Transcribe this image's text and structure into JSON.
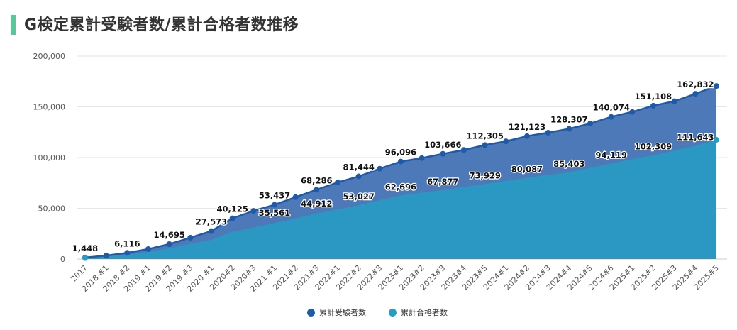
{
  "title": "G検定累計受験者数/累計合格者数推移",
  "chart_data": {
    "type": "area",
    "title": "G検定累計受験者数/累計合格者数推移",
    "xlabel": "",
    "ylabel": "",
    "ylim": [
      0,
      200000
    ],
    "yticks": [
      "0",
      "50,000",
      "100,000",
      "150,000",
      "200,000"
    ],
    "ytick_values": [
      0,
      50000,
      100000,
      150000,
      200000
    ],
    "grid": true,
    "legend_position": "bottom-center",
    "categories": [
      "2017",
      "2018 #1",
      "2018 #2",
      "2019 #1",
      "2019 #2",
      "2019 #3",
      "2020 #1",
      "2020#2",
      "2020#3",
      "2021 #1",
      "2021#2",
      "2021#3",
      "2022#1",
      "2022#2",
      "2022#3",
      "2023#1",
      "2023#2",
      "2023#3",
      "2023#4",
      "2023#5",
      "2024#1",
      "2024#2",
      "2024#3",
      "2024#4",
      "2024#5",
      "2024#6",
      "2025#1",
      "2025#2",
      "2025#3",
      "2025#4",
      "2025#5"
    ],
    "series": [
      {
        "name": "累計受験者数",
        "color": "#1f5aa8",
        "fill": "#4d79b9",
        "values": [
          1448,
          3400,
          6116,
          9800,
          14695,
          21000,
          27573,
          40125,
          47500,
          53437,
          61000,
          68286,
          75500,
          81444,
          89000,
          96096,
          99500,
          103666,
          107500,
          112305,
          116000,
          121123,
          124500,
          128307,
          133500,
          140074,
          145000,
          151108,
          155500,
          162832,
          170500
        ],
        "labels": {
          "0": "1,448",
          "2": "6,116",
          "4": "14,695",
          "6": "27,573",
          "7": "40,125",
          "9": "53,437",
          "11": "68,286",
          "13": "81,444",
          "15": "96,096",
          "17": "103,666",
          "19": "112,305",
          "21": "121,123",
          "23": "128,307",
          "25": "140,074",
          "27": "151,108",
          "29": "162,832"
        }
      },
      {
        "name": "累計合格者数",
        "color": "#2a9bc6",
        "fill": "#2b97c3",
        "values": [
          1000,
          2500,
          4500,
          7000,
          10500,
          15000,
          19000,
          27000,
          31000,
          35561,
          40000,
          44912,
          49000,
          53027,
          58000,
          62696,
          65500,
          67877,
          71000,
          73929,
          77000,
          80087,
          83000,
          85403,
          90000,
          94119,
          98500,
          102309,
          107000,
          111643,
          117500
        ],
        "labels": {
          "9": "35,561",
          "11": "44,912",
          "13": "53,027",
          "15": "62,696",
          "17": "67,877",
          "19": "73,929",
          "21": "80,087",
          "23": "85,403",
          "25": "94,119",
          "27": "102,309",
          "29": "111,643"
        }
      }
    ]
  }
}
